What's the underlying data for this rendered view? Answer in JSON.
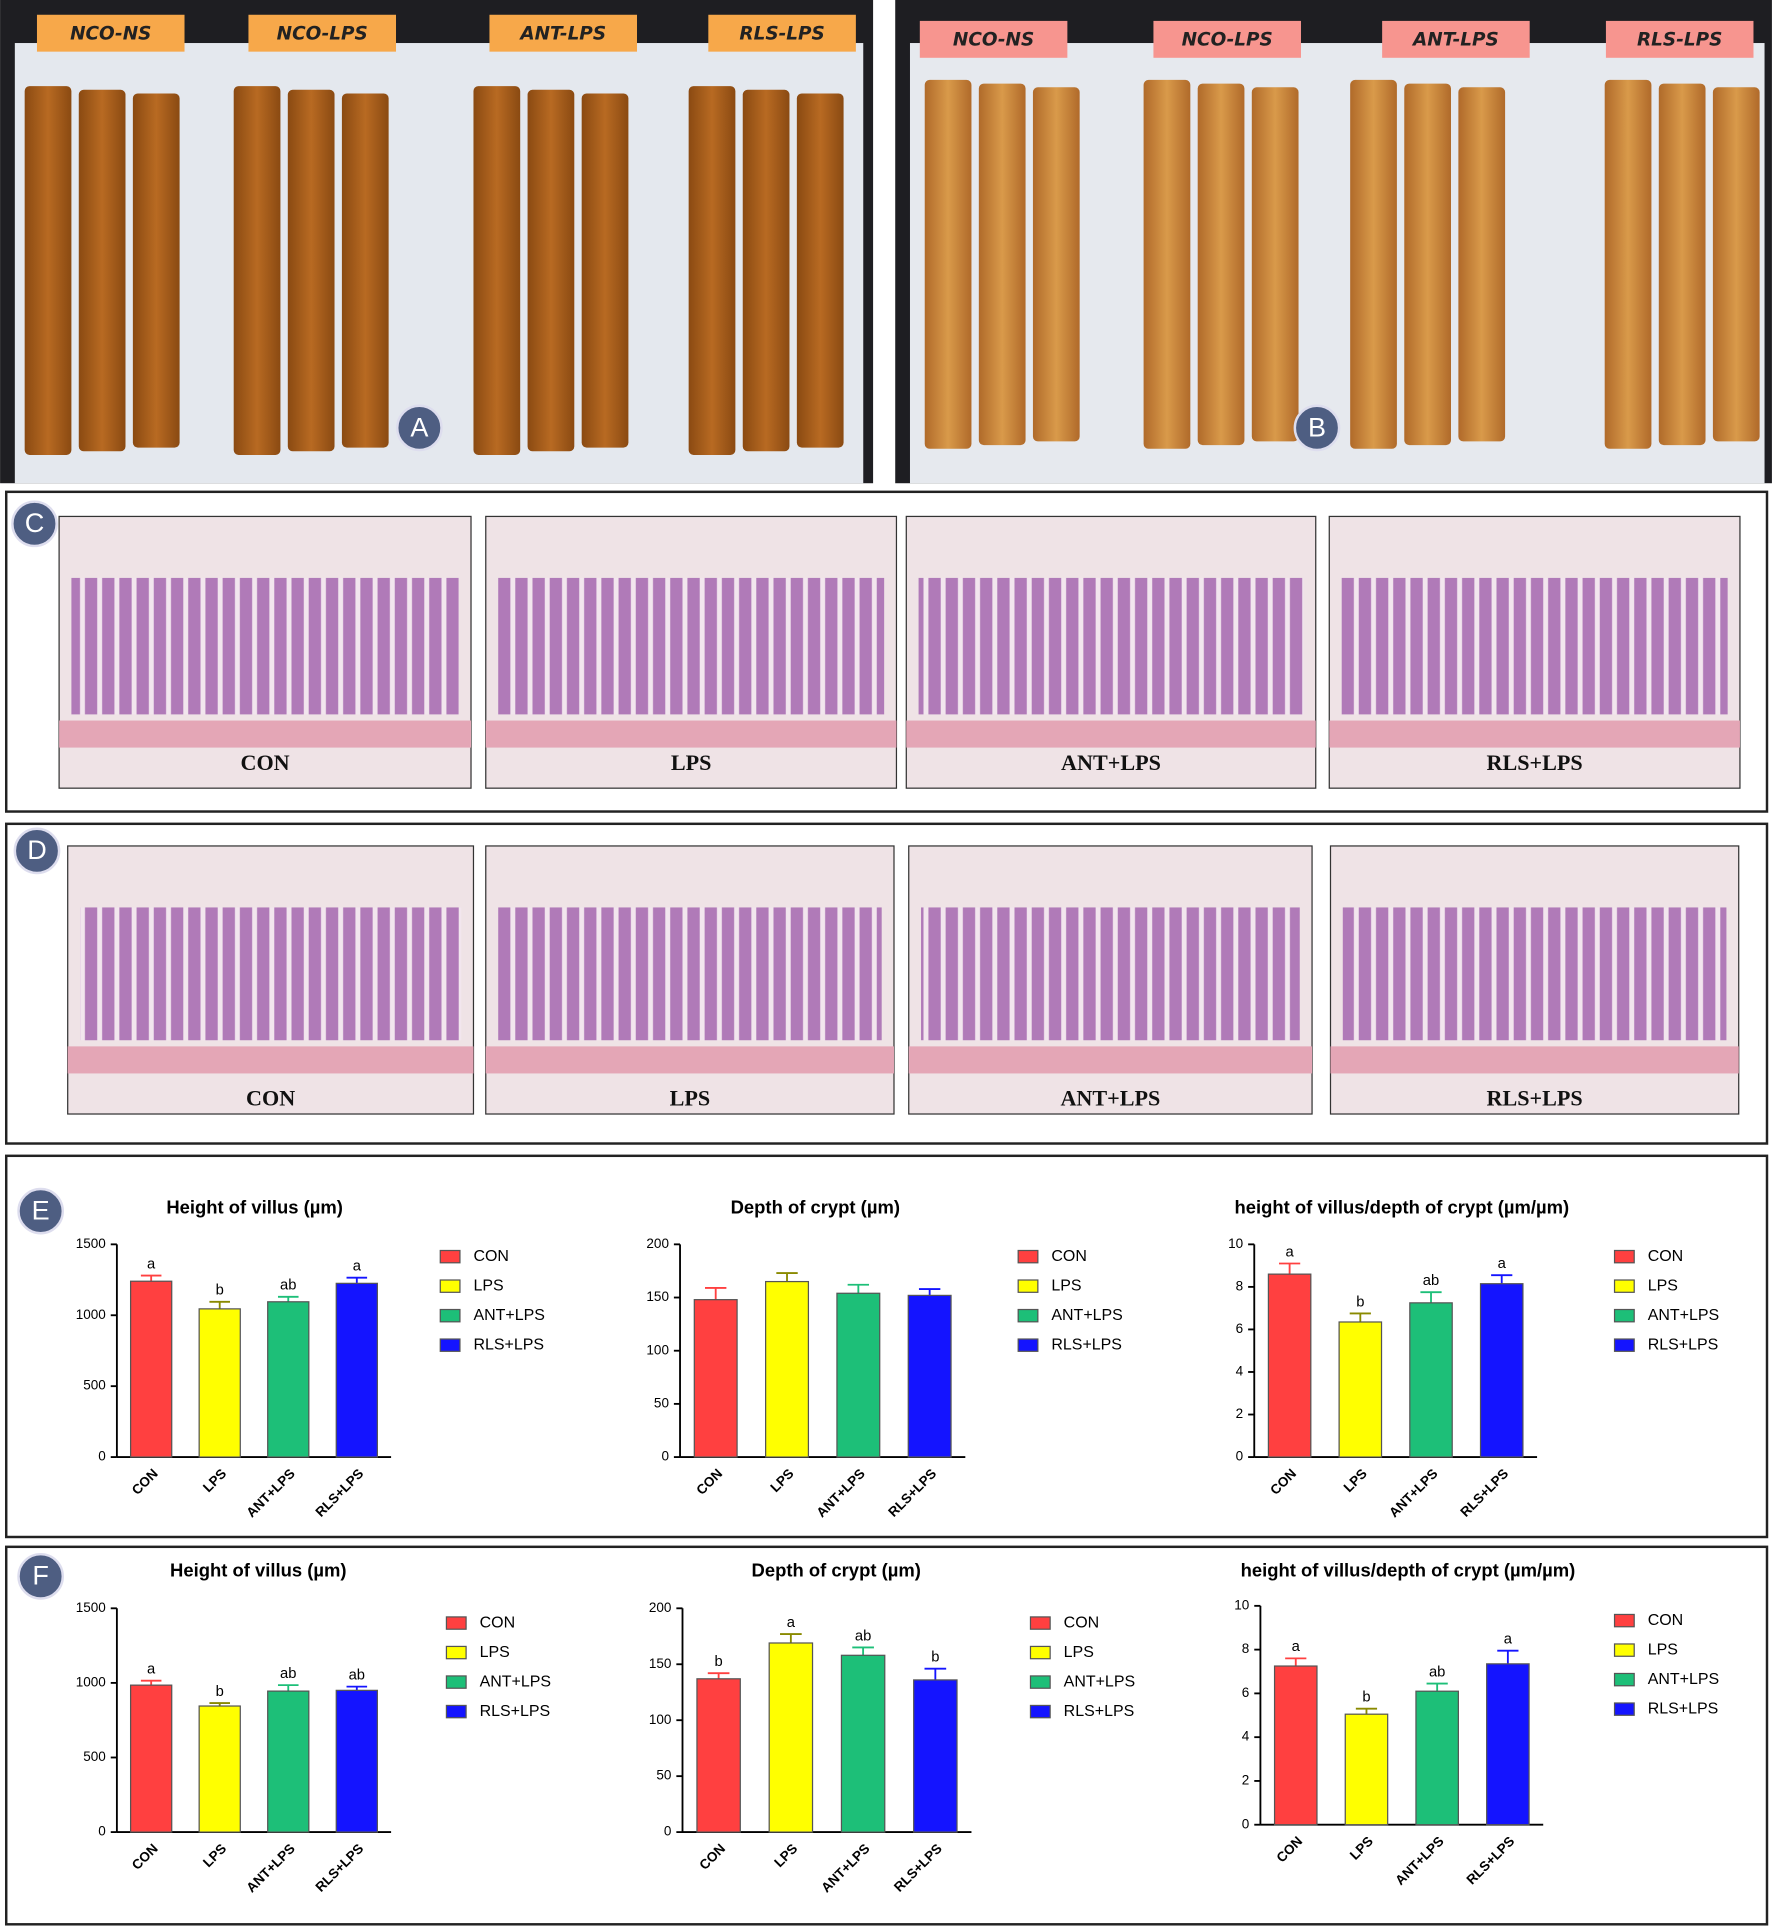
{
  "panel_letters": [
    "A",
    "B",
    "C",
    "D",
    "E",
    "F"
  ],
  "photo_labels": {
    "A": [
      "NCO-NS",
      "NCO-LPS",
      "ANT-LPS",
      "RLS-LPS"
    ],
    "B": [
      "NCO-NS",
      "NCO-LPS",
      "ANT-LPS",
      "RLS-LPS"
    ]
  },
  "histology_labels": {
    "C": [
      "CON",
      "LPS",
      "ANT+LPS",
      "RLS+LPS"
    ],
    "D": [
      "CON",
      "LPS",
      "ANT+LPS",
      "RLS+LPS"
    ]
  },
  "chart_data": [
    {
      "type": "bar",
      "title": "Height of villus (µm)",
      "categories": [
        "CON",
        "LPS",
        "ANT+LPS",
        "RLS+LPS"
      ],
      "colors": [
        "#ff4040",
        "#ffff00",
        "#1dbf78",
        "#1414ff"
      ],
      "values": [
        1240,
        1045,
        1095,
        1225
      ],
      "errors": [
        40,
        50,
        35,
        40
      ],
      "annotations": [
        "a",
        "b",
        "ab",
        "a"
      ],
      "ylim": [
        0,
        1500
      ],
      "yticks": [
        0,
        500,
        1000,
        1500
      ]
    },
    {
      "type": "bar",
      "title": "Depth of crypt (µm)",
      "categories": [
        "CON",
        "LPS",
        "ANT+LPS",
        "RLS+LPS"
      ],
      "colors": [
        "#ff4040",
        "#ffff00",
        "#1dbf78",
        "#1414ff"
      ],
      "values": [
        148,
        165,
        154,
        152
      ],
      "errors": [
        11,
        8,
        8,
        6
      ],
      "ylim": [
        0,
        200
      ],
      "yticks": [
        0,
        50,
        100,
        150,
        200
      ]
    },
    {
      "type": "bar",
      "title": "height of villus/depth of crypt (µm/µm)",
      "categories": [
        "CON",
        "LPS",
        "ANT+LPS",
        "RLS+LPS"
      ],
      "colors": [
        "#ff4040",
        "#ffff00",
        "#1dbf78",
        "#1414ff"
      ],
      "values": [
        8.6,
        6.35,
        7.25,
        8.15
      ],
      "errors": [
        0.5,
        0.4,
        0.5,
        0.4
      ],
      "annotations": [
        "a",
        "b",
        "ab",
        "a"
      ],
      "ylim": [
        0,
        10
      ],
      "yticks": [
        0,
        2,
        4,
        6,
        8,
        10
      ]
    },
    {
      "type": "bar",
      "title": "Height of villus (µm)",
      "categories": [
        "CON",
        "LPS",
        "ANT+LPS",
        "RLS+LPS"
      ],
      "colors": [
        "#ff4040",
        "#ffff00",
        "#1dbf78",
        "#1414ff"
      ],
      "values": [
        985,
        845,
        945,
        950
      ],
      "errors": [
        30,
        20,
        40,
        25
      ],
      "annotations": [
        "a",
        "b",
        "ab",
        "ab"
      ],
      "ylim": [
        0,
        1500
      ],
      "yticks": [
        0,
        500,
        1000,
        1500
      ]
    },
    {
      "type": "bar",
      "title": "Depth of crypt (µm)",
      "categories": [
        "CON",
        "LPS",
        "ANT+LPS",
        "RLS+LPS"
      ],
      "colors": [
        "#ff4040",
        "#ffff00",
        "#1dbf78",
        "#1414ff"
      ],
      "values": [
        137,
        169,
        158,
        136
      ],
      "errors": [
        5,
        8,
        7,
        10
      ],
      "annotations": [
        "b",
        "a",
        "ab",
        "b"
      ],
      "ylim": [
        0,
        200
      ],
      "yticks": [
        0,
        50,
        100,
        150,
        200
      ]
    },
    {
      "type": "bar",
      "title": "height of villus/depth of crypt (µm/µm)",
      "categories": [
        "CON",
        "LPS",
        "ANT+LPS",
        "RLS+LPS"
      ],
      "colors": [
        "#ff4040",
        "#ffff00",
        "#1dbf78",
        "#1414ff"
      ],
      "values": [
        7.25,
        5.05,
        6.1,
        7.35
      ],
      "errors": [
        0.35,
        0.25,
        0.35,
        0.6
      ],
      "annotations": [
        "a",
        "b",
        "ab",
        "a"
      ],
      "ylim": [
        0,
        10
      ],
      "yticks": [
        0,
        2,
        4,
        6,
        8,
        10
      ]
    }
  ]
}
